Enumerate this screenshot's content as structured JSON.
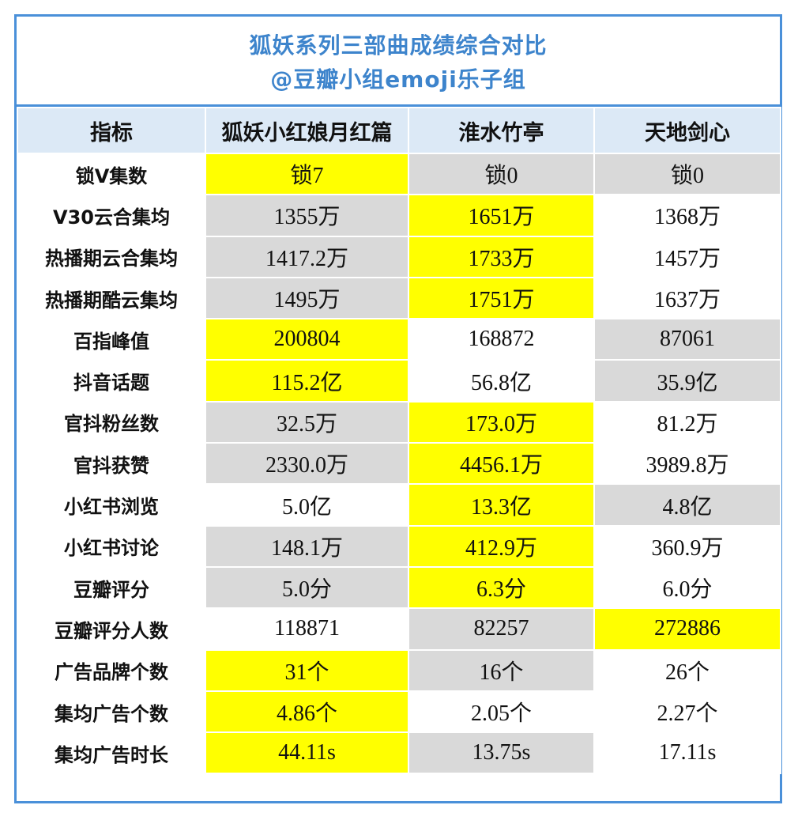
{
  "title": {
    "line1": "狐妖系列三部曲成绩综合对比",
    "line2": "@豆瓣小组emoji乐子组"
  },
  "colors": {
    "border": "#4a90d9",
    "title_text": "#3d84cc",
    "header_bg": "#dce9f6",
    "highlight": "#ffff00",
    "shaded": "#d9d9d9",
    "plain": "#ffffff"
  },
  "table": {
    "headers": [
      "指标",
      "狐妖小红娘月红篇",
      "淮水竹亭",
      "天地剑心"
    ],
    "rows": [
      {
        "label": "锁V集数",
        "cells": [
          {
            "value": "锁7",
            "bg": "yellow"
          },
          {
            "value": "锁0",
            "bg": "gray"
          },
          {
            "value": "锁0",
            "bg": "gray"
          }
        ]
      },
      {
        "label": "V30云合集均",
        "cells": [
          {
            "value": "1355万",
            "bg": "gray"
          },
          {
            "value": "1651万",
            "bg": "yellow"
          },
          {
            "value": "1368万",
            "bg": "white"
          }
        ]
      },
      {
        "label": "热播期云合集均",
        "cells": [
          {
            "value": "1417.2万",
            "bg": "gray"
          },
          {
            "value": "1733万",
            "bg": "yellow"
          },
          {
            "value": "1457万",
            "bg": "white"
          }
        ]
      },
      {
        "label": "热播期酷云集均",
        "cells": [
          {
            "value": "1495万",
            "bg": "gray"
          },
          {
            "value": "1751万",
            "bg": "yellow"
          },
          {
            "value": "1637万",
            "bg": "white"
          }
        ]
      },
      {
        "label": "百指峰值",
        "cells": [
          {
            "value": "200804",
            "bg": "yellow"
          },
          {
            "value": "168872",
            "bg": "white"
          },
          {
            "value": "87061",
            "bg": "gray"
          }
        ]
      },
      {
        "label": "抖音话题",
        "cells": [
          {
            "value": "115.2亿",
            "bg": "yellow"
          },
          {
            "value": "56.8亿",
            "bg": "white"
          },
          {
            "value": "35.9亿",
            "bg": "gray"
          }
        ]
      },
      {
        "label": "官抖粉丝数",
        "cells": [
          {
            "value": "32.5万",
            "bg": "gray"
          },
          {
            "value": "173.0万",
            "bg": "yellow"
          },
          {
            "value": "81.2万",
            "bg": "white"
          }
        ]
      },
      {
        "label": "官抖获赞",
        "cells": [
          {
            "value": "2330.0万",
            "bg": "gray"
          },
          {
            "value": "4456.1万",
            "bg": "yellow"
          },
          {
            "value": "3989.8万",
            "bg": "white"
          }
        ]
      },
      {
        "label": "小红书浏览",
        "cells": [
          {
            "value": "5.0亿",
            "bg": "white"
          },
          {
            "value": "13.3亿",
            "bg": "yellow"
          },
          {
            "value": "4.8亿",
            "bg": "gray"
          }
        ]
      },
      {
        "label": "小红书讨论",
        "cells": [
          {
            "value": "148.1万",
            "bg": "gray"
          },
          {
            "value": "412.9万",
            "bg": "yellow"
          },
          {
            "value": "360.9万",
            "bg": "white"
          }
        ]
      },
      {
        "label": "豆瓣评分",
        "cells": [
          {
            "value": "5.0分",
            "bg": "gray"
          },
          {
            "value": "6.3分",
            "bg": "yellow"
          },
          {
            "value": "6.0分",
            "bg": "white"
          }
        ]
      },
      {
        "label": "豆瓣评分人数",
        "cells": [
          {
            "value": "118871",
            "bg": "white"
          },
          {
            "value": "82257",
            "bg": "gray"
          },
          {
            "value": "272886",
            "bg": "yellow"
          }
        ]
      },
      {
        "label": "广告品牌个数",
        "cells": [
          {
            "value": "31个",
            "bg": "yellow"
          },
          {
            "value": "16个",
            "bg": "gray"
          },
          {
            "value": "26个",
            "bg": "white"
          }
        ]
      },
      {
        "label": "集均广告个数",
        "cells": [
          {
            "value": "4.86个",
            "bg": "yellow"
          },
          {
            "value": "2.05个",
            "bg": "white"
          },
          {
            "value": "2.27个",
            "bg": "white"
          }
        ]
      },
      {
        "label": "集均广告时长",
        "cells": [
          {
            "value": "44.11s",
            "bg": "yellow"
          },
          {
            "value": "13.75s",
            "bg": "gray"
          },
          {
            "value": "17.11s",
            "bg": "white"
          }
        ]
      }
    ]
  }
}
